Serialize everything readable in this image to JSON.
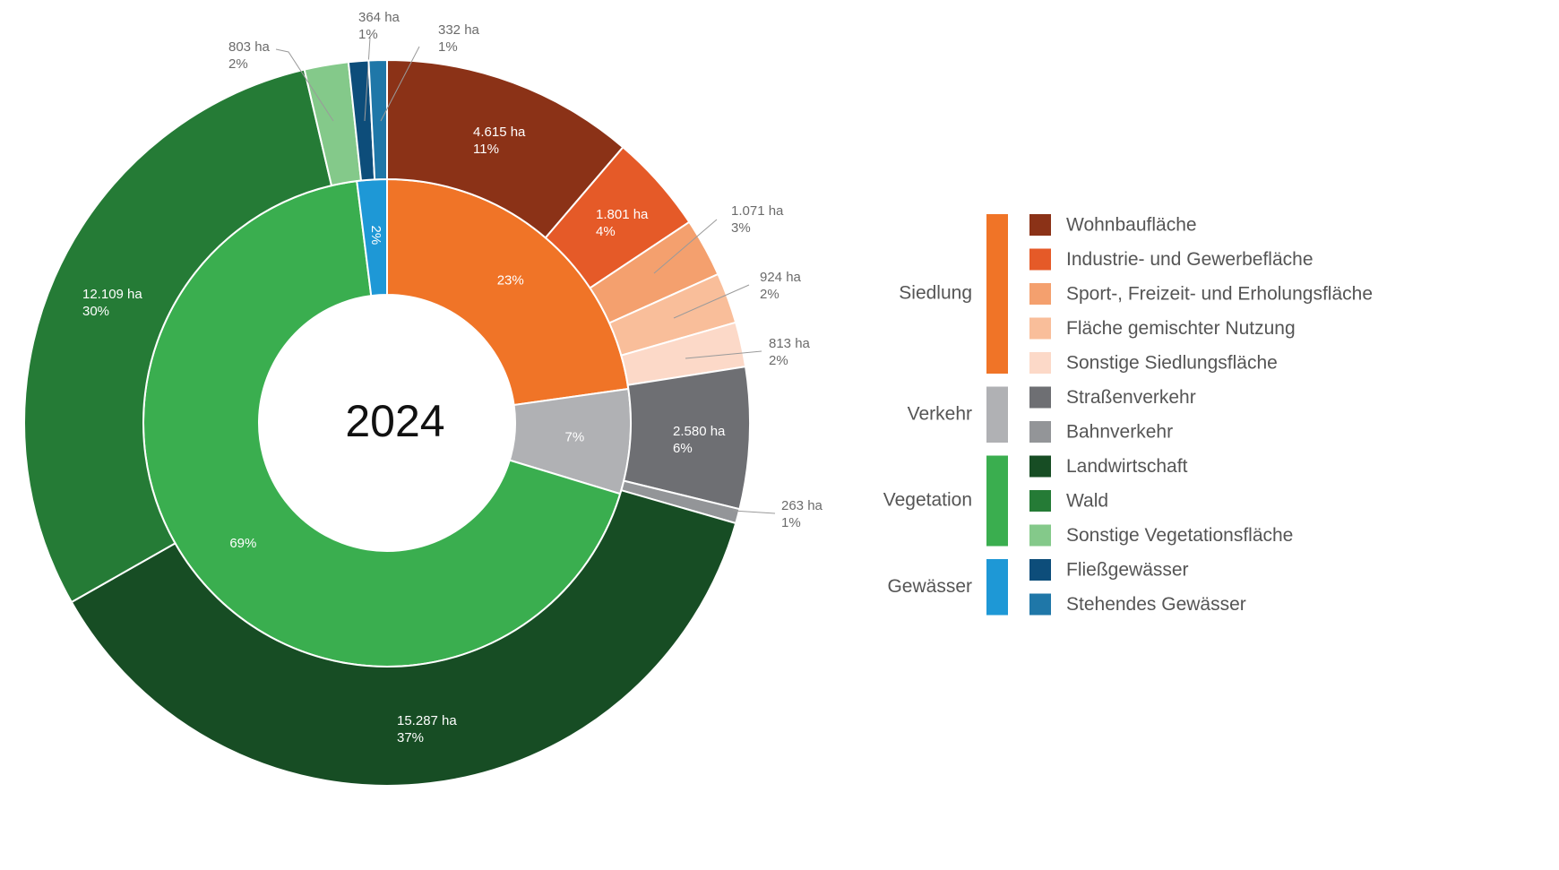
{
  "chart_data": {
    "type": "sunburst",
    "center_label": "2024",
    "groups": [
      {
        "name": "Siedlung",
        "color": "#F07427",
        "value": 23,
        "value_label": "23%",
        "items": [
          {
            "name": "Wohnbaufläche",
            "color": "#8B3217",
            "value": 4615,
            "value_label": "4.615 ha",
            "percentage": 11,
            "percentage_label": "11%"
          },
          {
            "name": "Industrie- und Gewerbefläche",
            "color": "#E55A28",
            "value": 1801,
            "value_label": "1.801 ha",
            "percentage": 4,
            "percentage_label": "4%"
          },
          {
            "name": "Sport-, Freizeit- und Erholungsfläche",
            "color": "#F4A06E",
            "value": 1071,
            "value_label": "1.071 ha",
            "percentage": 3,
            "percentage_label": "3%"
          },
          {
            "name": "Fläche gemischter Nutzung",
            "color": "#F9BE9A",
            "value": 924,
            "value_label": "924 ha",
            "percentage": 2,
            "percentage_label": "2%"
          },
          {
            "name": "Sonstige Siedlungsfläche",
            "color": "#FCD9C8",
            "value": 813,
            "value_label": "813 ha",
            "percentage": 2,
            "percentage_label": "2%"
          }
        ]
      },
      {
        "name": "Verkehr",
        "color": "#B0B1B4",
        "value": 7,
        "value_label": "7%",
        "items": [
          {
            "name": "Straßenverkehr",
            "color": "#6E6F73",
            "value": 2580,
            "value_label": "2.580 ha",
            "percentage": 6,
            "percentage_label": "6%"
          },
          {
            "name": "Bahnverkehr",
            "color": "#939598",
            "value": 263,
            "value_label": "263 ha",
            "percentage": 1,
            "percentage_label": "1%"
          }
        ]
      },
      {
        "name": "Vegetation",
        "color": "#3AAE4F",
        "value": 69,
        "value_label": "69%",
        "items": [
          {
            "name": "Landwirtschaft",
            "color": "#174D24",
            "value": 15287,
            "value_label": "15.287 ha",
            "percentage": 37,
            "percentage_label": "37%"
          },
          {
            "name": "Wald",
            "color": "#257B36",
            "value": 12109,
            "value_label": "12.109 ha",
            "percentage": 30,
            "percentage_label": "30%"
          },
          {
            "name": "Sonstige Vegetationsfläche",
            "color": "#84C98A",
            "value": 803,
            "value_label": "803 ha",
            "percentage": 2,
            "percentage_label": "2%"
          }
        ]
      },
      {
        "name": "Gewässer",
        "color": "#1E98D6",
        "value": 2,
        "value_label": "2%",
        "items": [
          {
            "name": "Fließgewässer",
            "color": "#0D4D7A",
            "value": 364,
            "value_label": "364 ha",
            "percentage": 1,
            "percentage_label": "1%"
          },
          {
            "name": "Stehendes Gewässer",
            "color": "#1F77A8",
            "value": 332,
            "value_label": "332 ha",
            "percentage": 1,
            "percentage_label": "1%"
          }
        ]
      }
    ]
  }
}
